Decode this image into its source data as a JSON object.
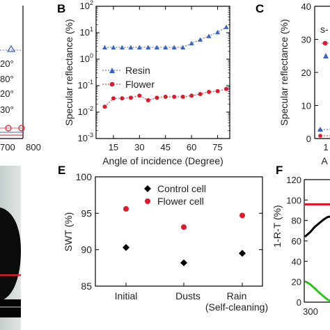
{
  "panel_labels": {
    "b": "B",
    "c": "C",
    "e": "E",
    "f": "F"
  },
  "colors": {
    "resin": "#3a62c8",
    "flower": "#e0192b",
    "control": "#000000",
    "flower_cell": "#e0192b",
    "green": "#2cc41a",
    "black": "#000000"
  },
  "left_partial": {
    "legend_fragments": [
      "20°",
      "80°",
      "20°",
      "30°"
    ],
    "x_ticks": [
      "700",
      "800"
    ]
  },
  "panel_c_partial": {
    "ylabel": "Specular reflectance (%)",
    "y_ticks": [
      "0",
      "10",
      "20",
      "30",
      "40"
    ],
    "x_fragment": "1",
    "xlabel_fragment": "A",
    "legend_fragment": "s-"
  },
  "panel_f_partial": {
    "ylabel": "1-R-T (%)",
    "y_ticks": [
      "0",
      "20",
      "40",
      "60",
      "80",
      "100",
      "120"
    ],
    "x_fragment": "300"
  },
  "chart_data": [
    {
      "panel": "B",
      "type": "line",
      "xlabel": "Angle of incidence (Degree)",
      "ylabel": "Specular reflectance (%)",
      "yscale": "log",
      "xlim": [
        5,
        82
      ],
      "ylim": [
        0.001,
        100
      ],
      "x_ticks": [
        15,
        30,
        45,
        60,
        75
      ],
      "y_ticks": [
        "10^-3",
        "10^-2",
        "10^-1",
        "10^0",
        "10^1",
        "10^2"
      ],
      "legend_position": "middle-left",
      "x": [
        10,
        15,
        20,
        25,
        30,
        35,
        40,
        45,
        50,
        55,
        60,
        65,
        70,
        75,
        80
      ],
      "series": [
        {
          "name": "Resin",
          "color": "#3a62c8",
          "marker": "triangle",
          "values": [
            2.8,
            2.8,
            2.8,
            2.8,
            2.8,
            2.8,
            2.8,
            2.8,
            2.8,
            2.8,
            4.0,
            5.5,
            7.5,
            10.5,
            16.5
          ]
        },
        {
          "name": "Flower",
          "color": "#e0192b",
          "marker": "circle",
          "values": [
            0.016,
            0.033,
            0.033,
            0.035,
            0.042,
            0.028,
            0.035,
            0.038,
            0.038,
            0.038,
            0.042,
            0.048,
            0.058,
            0.062,
            0.075
          ]
        }
      ]
    },
    {
      "panel": "E",
      "type": "scatter",
      "xlabel": "",
      "ylabel": "SWT (%)",
      "ylim": [
        85,
        100
      ],
      "y_ticks": [
        85,
        90,
        95,
        100
      ],
      "categories": [
        "Initial",
        "Dusts",
        "Rain",
        "(Self-cleaning)"
      ],
      "legend_position": "top-center",
      "series": [
        {
          "name": "Control cell",
          "color": "#000000",
          "marker": "diamond",
          "values": [
            90.3,
            88.2,
            89.5
          ]
        },
        {
          "name": "Flower cell",
          "color": "#e0192b",
          "marker": "circle",
          "values": [
            95.6,
            93.1,
            94.7
          ]
        }
      ]
    }
  ]
}
